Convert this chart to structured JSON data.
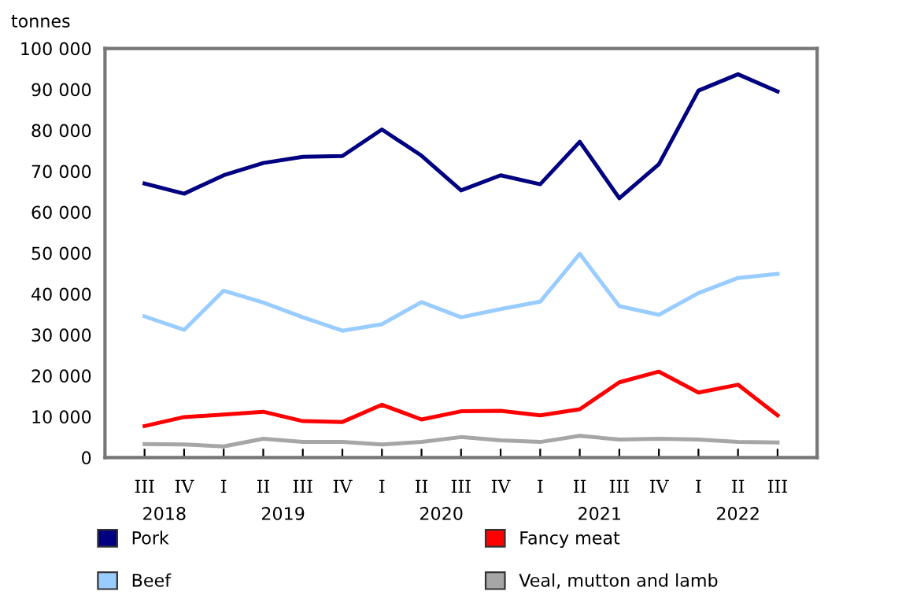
{
  "chart_data": {
    "type": "line",
    "ylabel": "tonnes",
    "categories": [
      "III",
      "IV",
      "I",
      "II",
      "III",
      "IV",
      "I",
      "II",
      "III",
      "IV",
      "I",
      "II",
      "III",
      "IV",
      "I",
      "II",
      "III"
    ],
    "annotations": [
      "2018",
      "2019",
      "2020",
      "2021",
      "2022"
    ],
    "ylim": [
      0,
      100000
    ],
    "yticks": [
      0,
      {
        "value": 10000,
        "label": "10 000"
      },
      {
        "value": 20000,
        "label": "20 000"
      },
      {
        "value": 30000,
        "label": "30 000"
      },
      {
        "value": 40000,
        "label": "40 000"
      },
      {
        "value": 50000,
        "label": "50 000"
      },
      {
        "value": 60000,
        "label": "60 000"
      },
      {
        "value": 70000,
        "label": "70 000"
      },
      {
        "value": 80000,
        "label": "80 000"
      },
      {
        "value": 90000,
        "label": "90 000"
      },
      {
        "value": 100000,
        "label": "100 000"
      }
    ],
    "grid": false,
    "legend": "bottom",
    "marker": "none",
    "line_style": "solid",
    "series": [
      {
        "name": "Pork",
        "color": "#000080",
        "values": [
          67000,
          64500,
          69000,
          72000,
          73500,
          73700,
          80200,
          73800,
          65300,
          69000,
          66800,
          77200,
          63400,
          71700,
          89700,
          93700,
          89500
        ]
      },
      {
        "name": "Beef",
        "color": "#99ccff",
        "values": [
          34500,
          31200,
          40800,
          37900,
          34300,
          31000,
          32600,
          38000,
          34300,
          36300,
          38100,
          49800,
          37000,
          34900,
          40200,
          43900,
          44900
        ]
      },
      {
        "name": "Fancy meat",
        "color": "#ff0000",
        "values": [
          7700,
          9900,
          10500,
          11200,
          8900,
          8700,
          12900,
          9300,
          11300,
          11400,
          10300,
          11800,
          18400,
          21000,
          15900,
          17800,
          10300
        ]
      },
      {
        "name": "Veal, mutton and lamb",
        "color": "#a6a6a6",
        "values": [
          3300,
          3200,
          2700,
          4600,
          3800,
          3800,
          3200,
          3800,
          5000,
          4200,
          3800,
          5300,
          4400,
          4600,
          4400,
          3800,
          3700
        ]
      }
    ]
  }
}
